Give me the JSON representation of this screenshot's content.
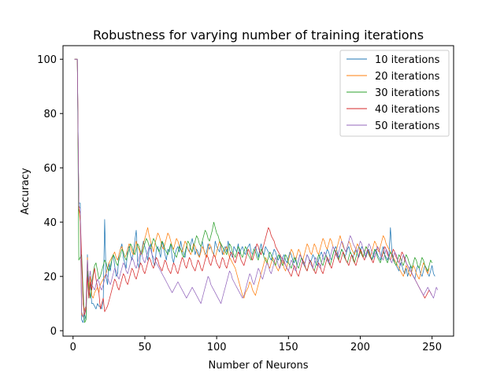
{
  "chart_data": {
    "type": "line",
    "title": "Robustness for varying number of training iterations",
    "xlabel": "Number of Neurons",
    "ylabel": "Accuracy",
    "xlim": [
      -7,
      265
    ],
    "ylim": [
      -2,
      105
    ],
    "xticks": [
      0,
      50,
      100,
      150,
      200,
      250
    ],
    "yticks": [
      0,
      20,
      40,
      60,
      80,
      100
    ],
    "grid": false,
    "legend_position": "top-right",
    "n_points": 252,
    "series": [
      {
        "name": "10 iterations",
        "color": "#1f77b4",
        "values": [
          100,
          100,
          100,
          47,
          47,
          4,
          3,
          6,
          4,
          28,
          12,
          18,
          10,
          10,
          9,
          8,
          10,
          9,
          9,
          8,
          11,
          41,
          20,
          17,
          25,
          22,
          26,
          28,
          24,
          20,
          21,
          28,
          30,
          32,
          27,
          25,
          23,
          30,
          31,
          28,
          26,
          29,
          33,
          37,
          25,
          23,
          28,
          30,
          33,
          31,
          29,
          26,
          30,
          32,
          28,
          25,
          24,
          30,
          31,
          29,
          27,
          33,
          31,
          28,
          26,
          30,
          29,
          32,
          27,
          25,
          28,
          30,
          31,
          29,
          33,
          30,
          28,
          27,
          31,
          30,
          29,
          32,
          34,
          31,
          28,
          30,
          29,
          27,
          31,
          33,
          30,
          28,
          29,
          32,
          30,
          31,
          29,
          28,
          33,
          31,
          30,
          29,
          32,
          28,
          30,
          31,
          29,
          33,
          30,
          28,
          27,
          31,
          30,
          29,
          32,
          28,
          30,
          31,
          29,
          28,
          30,
          31,
          32,
          29,
          28,
          30,
          31,
          29,
          27,
          30,
          32,
          29,
          28,
          31,
          30,
          29,
          27,
          26,
          28,
          30,
          29,
          27,
          26,
          28,
          25,
          27,
          28,
          26,
          25,
          27,
          29,
          28,
          26,
          25,
          27,
          24,
          26,
          28,
          27,
          25,
          24,
          26,
          28,
          27,
          25,
          26,
          28,
          27,
          25,
          24,
          26,
          28,
          29,
          27,
          26,
          28,
          30,
          29,
          27,
          26,
          28,
          30,
          31,
          29,
          27,
          28,
          30,
          29,
          27,
          28,
          30,
          31,
          29,
          28,
          27,
          29,
          30,
          28,
          27,
          29,
          31,
          30,
          28,
          27,
          29,
          30,
          28,
          26,
          27,
          29,
          30,
          28,
          27,
          26,
          29,
          31,
          28,
          27,
          26,
          28,
          38,
          29,
          27,
          25,
          24,
          23,
          22,
          25,
          24,
          22,
          21,
          23,
          20,
          22,
          24,
          21,
          20,
          19,
          22,
          24,
          23,
          21,
          20,
          22,
          24,
          23,
          21,
          20,
          22,
          24,
          21,
          20
        ]
      },
      {
        "name": "20 iterations",
        "color": "#ff7f0e",
        "values": [
          100,
          100,
          100,
          45,
          40,
          6,
          5,
          8,
          9,
          27,
          15,
          20,
          13,
          12,
          14,
          15,
          16,
          14,
          17,
          18,
          19,
          20,
          21,
          23,
          25,
          26,
          27,
          28,
          29,
          27,
          26,
          28,
          30,
          31,
          29,
          27,
          28,
          30,
          32,
          31,
          29,
          28,
          30,
          33,
          31,
          30,
          28,
          29,
          32,
          34,
          36,
          38,
          35,
          33,
          31,
          29,
          32,
          34,
          36,
          35,
          33,
          31,
          30,
          32,
          34,
          36,
          35,
          33,
          31,
          30,
          32,
          34,
          33,
          31,
          30,
          29,
          31,
          33,
          32,
          30,
          29,
          28,
          30,
          32,
          31,
          29,
          28,
          27,
          29,
          31,
          30,
          28,
          27,
          30,
          32,
          31,
          29,
          28,
          27,
          29,
          31,
          33,
          31,
          29,
          28,
          30,
          31,
          29,
          27,
          26,
          25,
          24,
          23,
          21,
          19,
          17,
          15,
          13,
          12,
          14,
          15,
          16,
          18,
          17,
          15,
          14,
          13,
          15,
          17,
          19,
          21,
          23,
          25,
          27,
          26,
          24,
          23,
          25,
          27,
          26,
          24,
          23,
          22,
          24,
          26,
          25,
          23,
          22,
          24,
          26,
          28,
          30,
          29,
          27,
          26,
          28,
          30,
          29,
          27,
          26,
          28,
          30,
          32,
          31,
          29,
          28,
          30,
          32,
          31,
          29,
          28,
          30,
          32,
          34,
          33,
          31,
          30,
          32,
          34,
          33,
          31,
          30,
          29,
          31,
          33,
          35,
          33,
          31,
          30,
          29,
          31,
          33,
          32,
          30,
          29,
          28,
          30,
          32,
          31,
          29,
          28,
          27,
          29,
          31,
          30,
          28,
          27,
          29,
          31,
          33,
          32,
          30,
          29,
          31,
          33,
          35,
          34,
          32,
          31,
          30,
          29,
          28,
          27,
          26,
          25,
          24,
          23,
          22,
          21,
          20,
          22,
          24,
          23,
          21,
          20,
          22,
          24,
          23,
          21,
          20,
          19,
          21,
          23,
          25,
          24,
          22,
          21,
          23
        ]
      },
      {
        "name": "30 iterations",
        "color": "#2ca02c",
        "values": [
          100,
          100,
          100,
          26,
          27,
          28,
          15,
          3,
          4,
          22,
          16,
          12,
          18,
          21,
          24,
          25,
          22,
          19,
          20,
          22,
          24,
          26,
          25,
          23,
          22,
          24,
          26,
          28,
          27,
          25,
          24,
          26,
          28,
          30,
          29,
          27,
          26,
          28,
          30,
          32,
          31,
          29,
          28,
          30,
          32,
          31,
          29,
          28,
          30,
          32,
          34,
          33,
          31,
          30,
          32,
          34,
          33,
          31,
          30,
          29,
          31,
          33,
          32,
          30,
          29,
          28,
          30,
          32,
          31,
          29,
          28,
          27,
          29,
          31,
          30,
          28,
          27,
          29,
          31,
          33,
          32,
          30,
          29,
          31,
          33,
          35,
          34,
          32,
          31,
          33,
          35,
          37,
          36,
          34,
          33,
          35,
          37,
          40,
          38,
          36,
          35,
          33,
          32,
          31,
          30,
          29,
          28,
          30,
          32,
          31,
          29,
          28,
          27,
          29,
          31,
          30,
          28,
          27,
          29,
          31,
          30,
          28,
          27,
          26,
          28,
          30,
          29,
          27,
          26,
          28,
          30,
          29,
          27,
          26,
          25,
          27,
          29,
          28,
          26,
          25,
          24,
          26,
          28,
          27,
          25,
          24,
          26,
          28,
          27,
          25,
          24,
          23,
          25,
          27,
          26,
          24,
          23,
          25,
          27,
          26,
          24,
          23,
          22,
          24,
          26,
          25,
          23,
          22,
          24,
          26,
          28,
          27,
          25,
          24,
          26,
          28,
          27,
          25,
          24,
          26,
          28,
          30,
          29,
          27,
          26,
          28,
          30,
          29,
          27,
          26,
          25,
          27,
          29,
          28,
          26,
          25,
          27,
          29,
          31,
          30,
          28,
          27,
          29,
          31,
          30,
          28,
          27,
          26,
          28,
          30,
          29,
          27,
          26,
          25,
          27,
          29,
          28,
          26,
          25,
          27,
          29,
          28,
          26,
          25,
          24,
          26,
          28,
          27,
          25,
          24,
          26,
          28,
          27,
          25,
          24,
          23,
          25,
          27,
          26,
          24,
          23,
          25,
          27,
          26,
          24,
          23,
          22,
          24,
          26,
          25
        ]
      },
      {
        "name": "40 iterations",
        "color": "#d62728",
        "values": [
          100,
          100,
          100,
          45,
          43,
          26,
          10,
          6,
          8,
          20,
          12,
          18,
          15,
          20,
          23,
          19,
          16,
          14,
          8,
          10,
          12,
          7,
          8,
          9,
          11,
          13,
          15,
          17,
          19,
          18,
          16,
          15,
          17,
          19,
          21,
          20,
          18,
          17,
          19,
          21,
          23,
          22,
          20,
          19,
          21,
          23,
          25,
          24,
          22,
          21,
          23,
          25,
          27,
          26,
          24,
          23,
          25,
          27,
          26,
          24,
          23,
          22,
          24,
          26,
          25,
          23,
          22,
          21,
          23,
          25,
          24,
          22,
          21,
          23,
          25,
          27,
          26,
          24,
          23,
          25,
          27,
          26,
          24,
          23,
          22,
          24,
          26,
          25,
          23,
          22,
          24,
          26,
          28,
          27,
          25,
          24,
          26,
          28,
          27,
          25,
          24,
          23,
          25,
          27,
          26,
          24,
          23,
          25,
          27,
          29,
          28,
          26,
          25,
          27,
          29,
          28,
          26,
          25,
          24,
          26,
          28,
          30,
          29,
          27,
          26,
          28,
          30,
          32,
          31,
          29,
          28,
          30,
          32,
          34,
          36,
          38,
          37,
          35,
          34,
          33,
          31,
          30,
          29,
          28,
          27,
          26,
          25,
          24,
          23,
          22,
          21,
          20,
          22,
          24,
          23,
          21,
          20,
          22,
          24,
          26,
          25,
          23,
          22,
          24,
          26,
          25,
          23,
          22,
          21,
          23,
          25,
          24,
          22,
          21,
          23,
          25,
          27,
          26,
          24,
          23,
          25,
          27,
          29,
          28,
          26,
          25,
          27,
          29,
          28,
          26,
          25,
          24,
          26,
          28,
          27,
          25,
          24,
          26,
          28,
          30,
          29,
          27,
          26,
          28,
          30,
          29,
          27,
          26,
          25,
          27,
          29,
          31,
          30,
          28,
          27,
          29,
          31,
          30,
          28,
          27,
          26,
          28,
          30,
          29,
          27,
          26,
          25,
          27,
          29,
          28,
          26,
          25,
          24,
          23,
          22,
          21,
          20,
          19,
          18,
          17,
          16,
          15,
          14,
          13,
          12,
          13,
          14,
          15,
          14,
          13
        ]
      },
      {
        "name": "50 iterations",
        "color": "#9467bd",
        "values": [
          100,
          100,
          100,
          46,
          45,
          7,
          5,
          7,
          9,
          26,
          18,
          22,
          17,
          16,
          15,
          17,
          19,
          18,
          16,
          15,
          17,
          19,
          21,
          20,
          18,
          17,
          19,
          21,
          23,
          22,
          20,
          19,
          21,
          23,
          25,
          24,
          22,
          21,
          23,
          25,
          27,
          26,
          24,
          23,
          25,
          27,
          29,
          28,
          26,
          25,
          27,
          29,
          31,
          30,
          28,
          27,
          26,
          25,
          24,
          23,
          22,
          21,
          20,
          19,
          18,
          17,
          16,
          15,
          14,
          15,
          16,
          17,
          18,
          17,
          16,
          15,
          14,
          13,
          12,
          13,
          14,
          15,
          16,
          15,
          14,
          13,
          12,
          11,
          10,
          12,
          14,
          16,
          18,
          20,
          19,
          17,
          16,
          15,
          14,
          13,
          12,
          11,
          10,
          12,
          14,
          16,
          18,
          20,
          22,
          21,
          19,
          18,
          17,
          16,
          15,
          14,
          13,
          12,
          13,
          15,
          17,
          19,
          21,
          20,
          18,
          17,
          19,
          21,
          23,
          22,
          20,
          19,
          21,
          23,
          25,
          24,
          22,
          21,
          23,
          25,
          27,
          26,
          24,
          23,
          25,
          27,
          26,
          24,
          23,
          22,
          24,
          26,
          25,
          23,
          22,
          24,
          26,
          28,
          27,
          25,
          24,
          26,
          28,
          27,
          25,
          24,
          23,
          25,
          27,
          26,
          24,
          23,
          25,
          27,
          29,
          28,
          26,
          25,
          27,
          29,
          31,
          30,
          28,
          27,
          29,
          31,
          33,
          32,
          30,
          29,
          31,
          33,
          35,
          34,
          32,
          31,
          30,
          29,
          31,
          33,
          32,
          30,
          29,
          28,
          30,
          32,
          31,
          29,
          28,
          27,
          29,
          31,
          30,
          28,
          27,
          26,
          28,
          30,
          29,
          27,
          26,
          25,
          27,
          29,
          28,
          26,
          25,
          24,
          26,
          28,
          27,
          25,
          24,
          23,
          22,
          21,
          20,
          19,
          18,
          17,
          16,
          15,
          14,
          13,
          14,
          15,
          16,
          15,
          14,
          13,
          12,
          14,
          16,
          15
        ]
      }
    ]
  }
}
